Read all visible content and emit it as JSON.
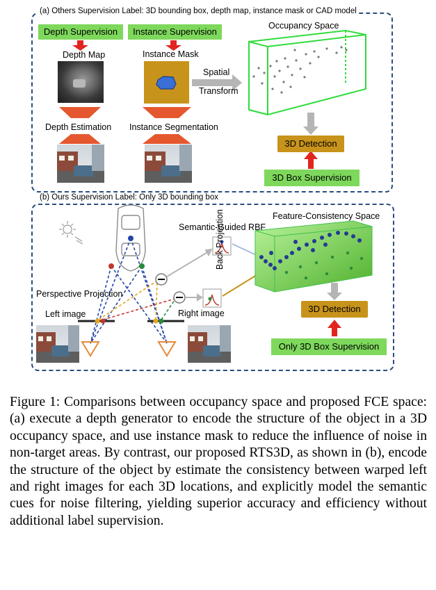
{
  "panel_a": {
    "label": "(a) Others Supervision Label: 3D bounding box, depth map, instance mask or CAD model",
    "depth_supervision": "Depth Supervision",
    "instance_supervision": "Instance Supervision",
    "depth_map": "Depth Map",
    "instance_mask": "Instance Mask",
    "spatial": "Spatial",
    "transform": "Transform",
    "occupancy_space": "Occupancy Space",
    "depth_estimation": "Depth Estimation",
    "instance_segmentation": "Instance Segmentation",
    "detection": "3D Detection",
    "box_supervision": "3D Box Supervision"
  },
  "panel_b": {
    "label": "(b) Ours Supervision Label: Only 3D bounding box",
    "semantic_rbf": "Semantic-Guided RBF",
    "fc_space": "Feature-Consistency Space",
    "back_projection": "Back Projection",
    "perspective_projection": "Perspective Projection",
    "left_image": "Left image",
    "right_image": "Right image",
    "detection": "3D Detection",
    "box_supervision": "Only 3D Box Supervision"
  },
  "colors": {
    "green": "#7ed85c",
    "gold": "#c8931a",
    "arrow_red": "#e0261f",
    "dash_blue": "#2a4d7f",
    "box_green": "#2fdc3c"
  },
  "caption": "Figure 1: Comparisons between occupancy space and proposed FCE space: (a) execute a depth generator to encode the structure of the object in a 3D occupancy space, and use instance mask to reduce the influence of noise in non-target areas. By contrast, our proposed RTS3D, as shown in (b), encode the structure of the object by estimate the consistency between warped left and right images for each 3D locations, and explicitly model the semantic cues for noise filtering, yielding superior accuracy and efficiency without additional label supervision."
}
